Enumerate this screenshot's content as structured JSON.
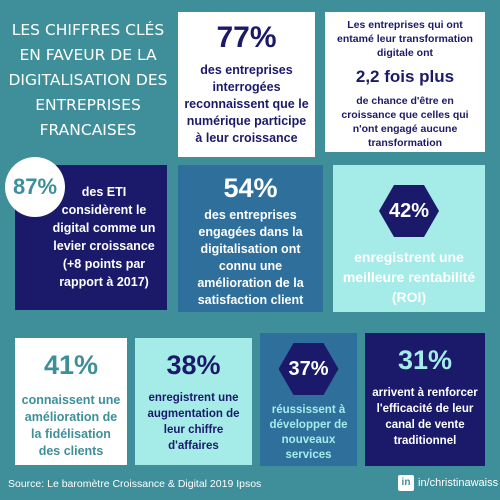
{
  "title": [
    "LES CHIFFRES CLÉS",
    "EN FAVEUR DE LA",
    "DIGITALISATION DES",
    "ENTREPRISES",
    "FRANCAISES"
  ],
  "stats": {
    "s1": {
      "value": "77%",
      "text": "des entreprises interrogées reconnaissent que le numérique participe à leur croissance"
    },
    "s2": {
      "intro": "Les entreprises qui ont entamé leur transformation digitale ont",
      "value": "2,2 fois plus",
      "text": "de chance d'être en croissance que celles qui n'ont engagé aucune transformation"
    },
    "s3": {
      "value": "87%",
      "text": "des ETI considèrent le digital comme un levier croissance (+8 points par rapport à 2017)"
    },
    "s4": {
      "value": "54%",
      "text": "des entreprises engagées dans la digitalisation ont connu une amélioration de la satisfaction client"
    },
    "s5": {
      "value": "42%",
      "text": "enregistrent une meilleure rentabilité (ROI)"
    },
    "s6": {
      "value": "41%",
      "text": "connaissent une amélioration de la fidélisation des clients"
    },
    "s7": {
      "value": "38%",
      "text": "enregistrent une augmentation de leur chiffre d'affaires"
    },
    "s8": {
      "value": "37%",
      "text": "réussissent à développer de nouveaux services"
    },
    "s9": {
      "value": "31%",
      "text": "arrivent à renforcer l'efficacité de leur canal de vente traditionnel"
    }
  },
  "footer": {
    "source": "Source: Le baromètre Croissance & Digital 2019 Ipsos",
    "linkedin_icon": "in",
    "handle": "in/christinawaiss"
  },
  "colors": {
    "background": "#3e8f9a",
    "navy": "#1b1a6a",
    "mint": "#a5ece9",
    "cyan": "#67cfde",
    "blue": "#2e6f9c"
  }
}
